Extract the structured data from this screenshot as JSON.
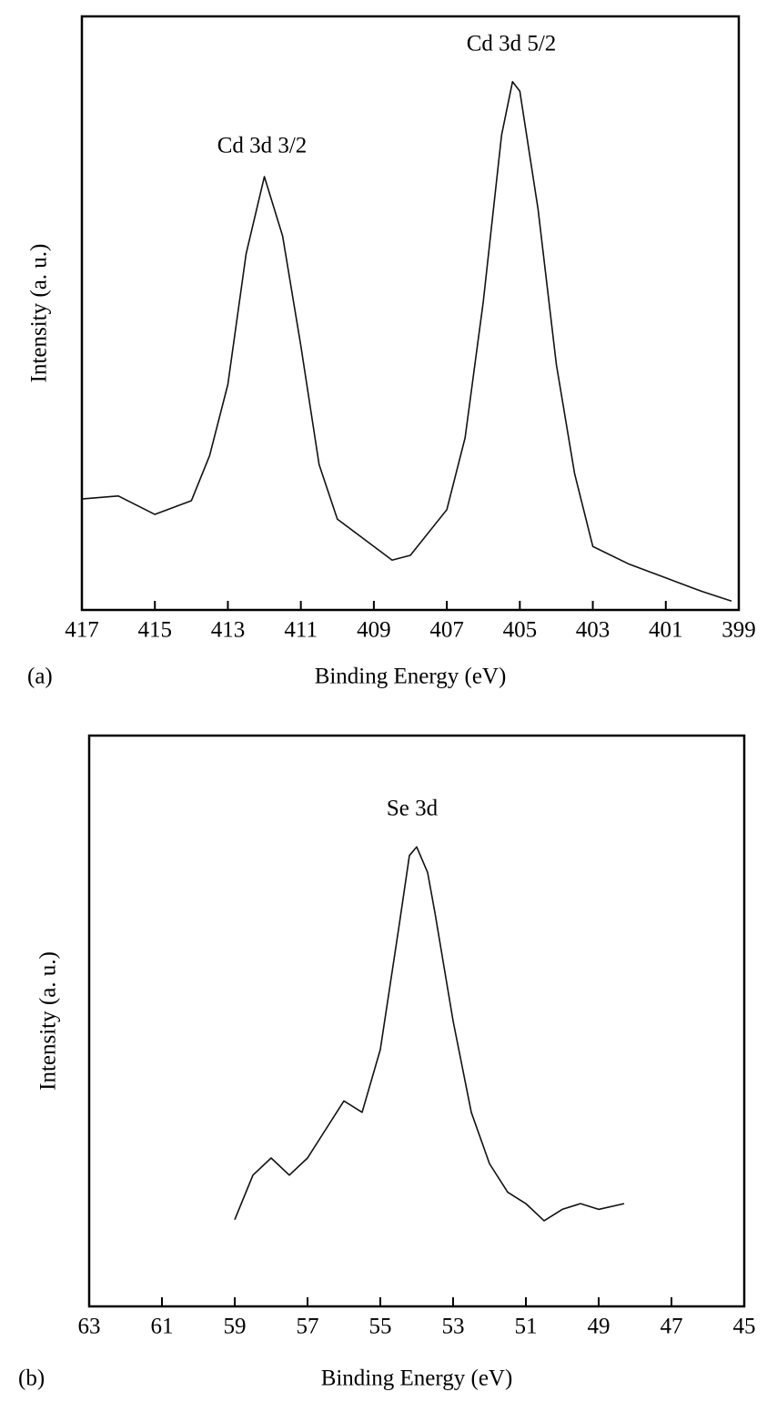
{
  "chart_data": [
    {
      "type": "line",
      "panel_label": "(a)",
      "xlabel": "Binding Energy (eV)",
      "ylabel": "Intensity (a. u.)",
      "annotations": [
        "Cd 3d 3/2",
        "Cd 3d 5/2"
      ],
      "x": [
        417,
        416,
        415,
        414,
        413.5,
        413,
        412.5,
        412,
        411.5,
        411,
        410.5,
        410,
        409,
        408.5,
        408,
        407,
        406.5,
        406,
        405.5,
        405.2,
        405,
        404.5,
        404,
        403.5,
        403,
        402,
        401,
        400,
        399.2
      ],
      "values": [
        18.7,
        19.2,
        16.1,
        18.4,
        26,
        38,
        60,
        73,
        63,
        44.5,
        24.5,
        15.3,
        10.7,
        8.4,
        9.2,
        16.9,
        29,
        52,
        80,
        89,
        87.4,
        67.5,
        41.4,
        23,
        10.7,
        7.7,
        5.4,
        3.1,
        1.5
      ],
      "color": "#111111",
      "xlim": [
        417,
        399
      ],
      "xticks": [
        417,
        415,
        413,
        411,
        409,
        407,
        405,
        403,
        401,
        399
      ],
      "ylim": [
        0,
        100
      ]
    },
    {
      "type": "line",
      "panel_label": "(b)",
      "xlabel": "Binding Energy (eV)",
      "ylabel": "Intensity (a. u.)",
      "annotations": [
        "Se 3d"
      ],
      "x": [
        59,
        58.5,
        58,
        57.5,
        57,
        56.5,
        56,
        55.5,
        55,
        54.5,
        54.2,
        54,
        53.7,
        53.5,
        53,
        52.5,
        52,
        51.5,
        51,
        50.5,
        50,
        49.5,
        49,
        48.3
      ],
      "values": [
        15.2,
        23,
        26,
        23,
        26,
        31,
        36,
        34,
        45,
        66,
        79,
        80.5,
        76,
        69,
        50,
        34,
        25,
        20,
        18,
        15,
        17,
        18,
        17,
        18
      ],
      "color": "#111111",
      "xlim": [
        63,
        45
      ],
      "xticks": [
        63,
        61,
        59,
        57,
        55,
        53,
        51,
        49,
        47,
        45
      ],
      "ylim": [
        0,
        100
      ]
    }
  ]
}
